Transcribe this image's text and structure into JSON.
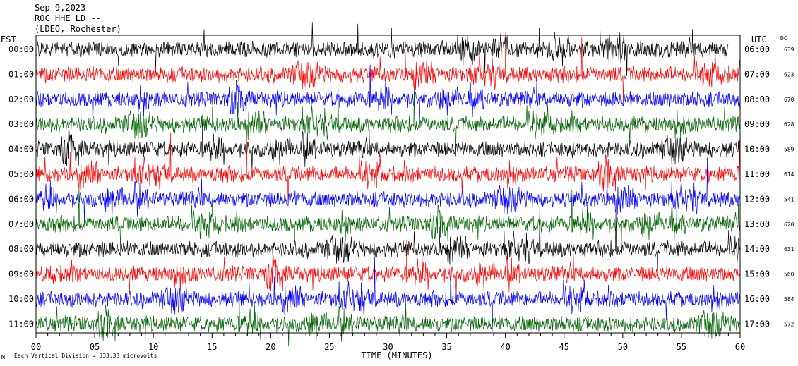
{
  "header": {
    "date": "Sep 9,2023",
    "station": "ROC HHE LD --",
    "location": "(LDEO, Rochester)"
  },
  "left_zone": "EST",
  "right_zone": "UTC",
  "dc_header": "DC",
  "footer": {
    "scale_note": "Each Vertical Division =  333.33 microvolts",
    "mark": "M"
  },
  "chart_data": {
    "type": "line",
    "title": "",
    "xlabel": "TIME (MINUTES)",
    "ylabel": "",
    "xlim": [
      0,
      60
    ],
    "x_ticks": [
      "00",
      "05",
      "10",
      "15",
      "20",
      "25",
      "30",
      "35",
      "40",
      "45",
      "50",
      "55",
      "60"
    ],
    "trace_colors": [
      "#000000",
      "#ff0000",
      "#0000ff",
      "#006400"
    ],
    "rows": [
      {
        "est": "00:00",
        "utc": "06:00",
        "dc": "639"
      },
      {
        "est": "01:00",
        "utc": "07:00",
        "dc": "623"
      },
      {
        "est": "02:00",
        "utc": "08:00",
        "dc": "670"
      },
      {
        "est": "03:00",
        "utc": "09:00",
        "dc": "628"
      },
      {
        "est": "04:00",
        "utc": "10:00",
        "dc": "589"
      },
      {
        "est": "05:00",
        "utc": "11:00",
        "dc": "614"
      },
      {
        "est": "06:00",
        "utc": "12:00",
        "dc": "541"
      },
      {
        "est": "07:00",
        "utc": "13:00",
        "dc": "620"
      },
      {
        "est": "08:00",
        "utc": "14:00",
        "dc": "631"
      },
      {
        "est": "09:00",
        "utc": "15:00",
        "dc": "560"
      },
      {
        "est": "10:00",
        "utc": "16:00",
        "dc": "584"
      },
      {
        "est": "11:00",
        "utc": "17:00",
        "dc": "572"
      }
    ]
  }
}
